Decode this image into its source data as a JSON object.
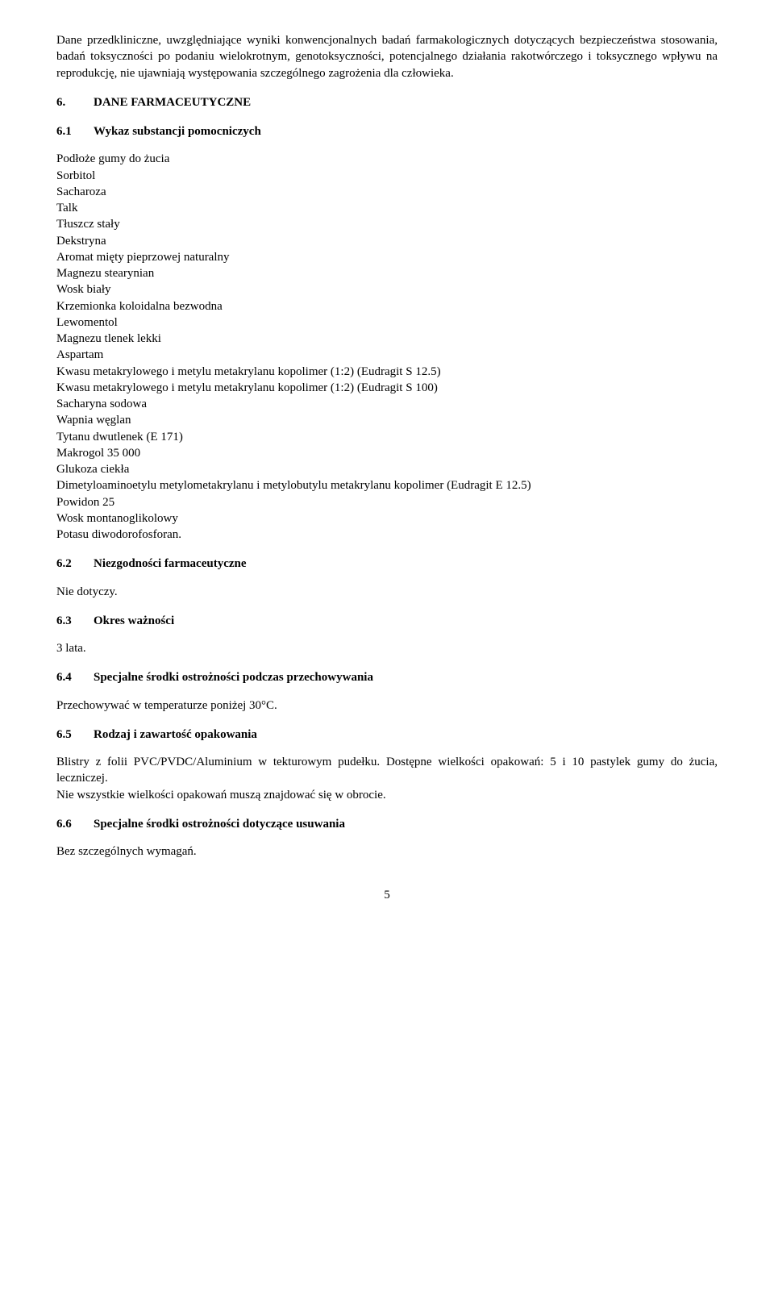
{
  "intro_para": "Dane przedkliniczne, uwzględniające wyniki konwencjonalnych badań farmakologicznych dotyczących bezpieczeństwa stosowania, badań toksyczności po podaniu wielokrotnym, genotoksyczności, potencjalnego działania rakotwórczego i toksycznego wpływu na reprodukcję, nie ujawniają występowania szczególnego zagrożenia dla człowieka.",
  "s6": {
    "num": "6.",
    "title": "DANE FARMACEUTYCZNE"
  },
  "s6_1": {
    "num": "6.1",
    "title": "Wykaz substancji pomocniczych"
  },
  "excipients": [
    "Podłoże gumy do żucia",
    "Sorbitol",
    "Sacharoza",
    "Talk",
    "Tłuszcz stały",
    "Dekstryna",
    "Aromat mięty pieprzowej naturalny",
    "Magnezu stearynian",
    "Wosk biały",
    "Krzemionka koloidalna bezwodna",
    "Lewomentol",
    "Magnezu tlenek lekki",
    "Aspartam",
    "Kwasu metakrylowego i metylu metakrylanu kopolimer (1:2) (Eudragit S 12.5)",
    "Kwasu metakrylowego i metylu metakrylanu kopolimer (1:2) (Eudragit S 100)",
    "Sacharyna sodowa",
    "Wapnia węglan",
    "Tytanu dwutlenek (E 171)",
    "Makrogol 35 000",
    "Glukoza ciekła",
    "Dimetyloaminoetylu metylometakrylanu i metylobutylu metakrylanu kopolimer (Eudragit E 12.5)",
    "Powidon 25",
    "Wosk montanoglikolowy",
    "Potasu diwodorofosforan."
  ],
  "s6_2": {
    "num": "6.2",
    "title": "Niezgodności farmaceutyczne"
  },
  "s6_2_body": "Nie dotyczy.",
  "s6_3": {
    "num": "6.3",
    "title": "Okres ważności"
  },
  "s6_3_body": "3 lata.",
  "s6_4": {
    "num": "6.4",
    "title": "Specjalne środki ostrożności podczas przechowywania"
  },
  "s6_4_body": "Przechowywać w temperaturze poniżej 30°C.",
  "s6_5": {
    "num": "6.5",
    "title": "Rodzaj i zawartość opakowania"
  },
  "s6_5_body1": "Blistry z folii PVC/PVDC/Aluminium w tekturowym pudełku. Dostępne wielkości opakowań: 5 i 10 pastylek gumy do żucia, leczniczej.",
  "s6_5_body2": "Nie wszystkie wielkości opakowań muszą znajdować się w obrocie.",
  "s6_6": {
    "num": "6.6",
    "title": "Specjalne środki ostrożności dotyczące usuwania"
  },
  "s6_6_body": "Bez szczególnych wymagań.",
  "page_number": "5"
}
